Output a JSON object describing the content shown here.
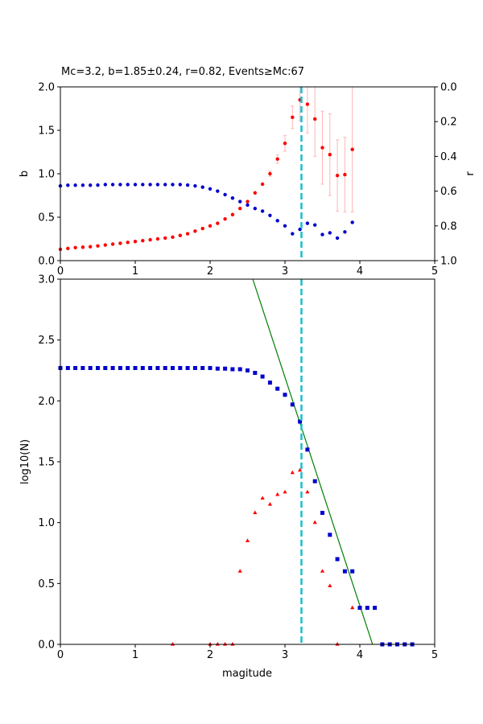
{
  "chart_data": [
    {
      "type": "scatter",
      "title": "Mc=3.2, b=1.85±0.24, r=0.82, Events≥Mc:67",
      "xlabel": "",
      "ylabel": "b",
      "y2label": "r",
      "xlim": [
        0,
        5
      ],
      "ylim": [
        0,
        2.0
      ],
      "y2lim": [
        1.0,
        0.0
      ],
      "y2_inverted": true,
      "xticks": [
        "0",
        "1",
        "2",
        "3",
        "4",
        "5"
      ],
      "yticks": [
        "0.0",
        "0.5",
        "1.0",
        "1.5",
        "2.0"
      ],
      "y2ticks": [
        "0.0",
        "0.2",
        "0.4",
        "0.6",
        "0.8",
        "1.0"
      ],
      "mc_line": 3.22,
      "mc_line_color": "#17becf",
      "series": [
        {
          "axis": "left",
          "color": "#ff0000",
          "marker": "circle",
          "x": [
            0.0,
            0.1,
            0.2,
            0.3,
            0.4,
            0.5,
            0.6,
            0.7,
            0.8,
            0.9,
            1.0,
            1.1,
            1.2,
            1.3,
            1.4,
            1.5,
            1.6,
            1.7,
            1.8,
            1.9,
            2.0,
            2.1,
            2.2,
            2.3,
            2.4,
            2.5,
            2.6,
            2.7,
            2.8,
            2.9,
            3.0,
            3.1,
            3.2,
            3.3,
            3.4,
            3.5,
            3.6,
            3.7,
            3.8,
            3.9
          ],
          "y": [
            0.13,
            0.14,
            0.15,
            0.155,
            0.16,
            0.17,
            0.18,
            0.19,
            0.2,
            0.21,
            0.22,
            0.23,
            0.24,
            0.25,
            0.26,
            0.27,
            0.29,
            0.31,
            0.34,
            0.37,
            0.4,
            0.43,
            0.48,
            0.53,
            0.6,
            0.68,
            0.78,
            0.88,
            1.0,
            1.17,
            1.35,
            1.65,
            1.85,
            1.8,
            1.63,
            1.3,
            1.22,
            0.98,
            0.99,
            1.28
          ],
          "err": [
            0,
            0,
            0,
            0,
            0,
            0,
            0,
            0,
            0,
            0,
            0,
            0,
            0,
            0,
            0,
            0,
            0,
            0,
            0,
            0,
            0,
            0,
            0,
            0,
            0,
            0,
            0,
            0,
            0.03,
            0.05,
            0.09,
            0.13,
            0.24,
            0.33,
            0.43,
            0.42,
            0.47,
            0.41,
            0.43,
            0.72
          ]
        },
        {
          "axis": "right",
          "color": "#0000cc",
          "marker": "circle",
          "x": [
            0.0,
            0.1,
            0.2,
            0.3,
            0.4,
            0.5,
            0.6,
            0.7,
            0.8,
            0.9,
            1.0,
            1.1,
            1.2,
            1.3,
            1.4,
            1.5,
            1.6,
            1.7,
            1.8,
            1.9,
            2.0,
            2.1,
            2.2,
            2.3,
            2.4,
            2.5,
            2.6,
            2.7,
            2.8,
            2.9,
            3.0,
            3.1,
            3.2,
            3.3,
            3.4,
            3.5,
            3.6,
            3.7,
            3.8,
            3.9
          ],
          "y": [
            0.57,
            0.566,
            0.566,
            0.566,
            0.566,
            0.565,
            0.562,
            0.562,
            0.562,
            0.562,
            0.562,
            0.562,
            0.562,
            0.562,
            0.562,
            0.562,
            0.562,
            0.565,
            0.57,
            0.577,
            0.587,
            0.6,
            0.62,
            0.64,
            0.66,
            0.68,
            0.7,
            0.715,
            0.74,
            0.77,
            0.8,
            0.845,
            0.82,
            0.785,
            0.795,
            0.85,
            0.84,
            0.87,
            0.835,
            0.78
          ]
        }
      ]
    },
    {
      "type": "scatter",
      "title": "",
      "xlabel": "magitude",
      "ylabel": "log10(N)",
      "xlim": [
        0,
        5
      ],
      "ylim": [
        0,
        3.0
      ],
      "xticks": [
        "0",
        "1",
        "2",
        "3",
        "4",
        "5"
      ],
      "yticks": [
        "0.0",
        "0.5",
        "1.0",
        "1.5",
        "2.0",
        "2.5",
        "3.0"
      ],
      "mc_line": 3.22,
      "mc_line_color": "#17becf",
      "fit_line": {
        "color": "#008000",
        "x": [
          2.57,
          4.17
        ],
        "y": [
          3.0,
          0.0
        ]
      },
      "series": [
        {
          "color": "#0000cc",
          "marker": "square",
          "x": [
            0.0,
            0.1,
            0.2,
            0.3,
            0.4,
            0.5,
            0.6,
            0.7,
            0.8,
            0.9,
            1.0,
            1.1,
            1.2,
            1.3,
            1.4,
            1.5,
            1.6,
            1.7,
            1.8,
            1.9,
            2.0,
            2.1,
            2.2,
            2.3,
            2.4,
            2.5,
            2.6,
            2.7,
            2.8,
            2.9,
            3.0,
            3.1,
            3.2,
            3.3,
            3.4,
            3.5,
            3.6,
            3.7,
            3.8,
            3.9,
            4.0,
            4.1,
            4.2,
            4.3,
            4.4,
            4.5,
            4.6,
            4.7
          ],
          "y": [
            2.27,
            2.27,
            2.27,
            2.27,
            2.27,
            2.27,
            2.27,
            2.27,
            2.27,
            2.27,
            2.27,
            2.27,
            2.27,
            2.27,
            2.27,
            2.27,
            2.27,
            2.27,
            2.27,
            2.27,
            2.27,
            2.265,
            2.265,
            2.26,
            2.26,
            2.25,
            2.23,
            2.2,
            2.15,
            2.1,
            2.05,
            1.97,
            1.83,
            1.6,
            1.34,
            1.08,
            0.9,
            0.7,
            0.6,
            0.6,
            0.3,
            0.3,
            0.3,
            0.0,
            0.0,
            0.0,
            0.0,
            0.0
          ]
        },
        {
          "color": "#ff0000",
          "marker": "triangle",
          "x": [
            1.5,
            2.0,
            2.1,
            2.2,
            2.3,
            2.4,
            2.5,
            2.6,
            2.7,
            2.8,
            2.9,
            3.0,
            3.1,
            3.2,
            3.3,
            3.4,
            3.5,
            3.6,
            3.7,
            3.9
          ],
          "y": [
            0.0,
            0.0,
            0.0,
            0.0,
            0.0,
            0.6,
            0.85,
            1.08,
            1.2,
            1.15,
            1.23,
            1.25,
            1.41,
            1.43,
            1.25,
            1.0,
            0.6,
            0.48,
            0.0,
            0.3
          ]
        }
      ]
    }
  ]
}
